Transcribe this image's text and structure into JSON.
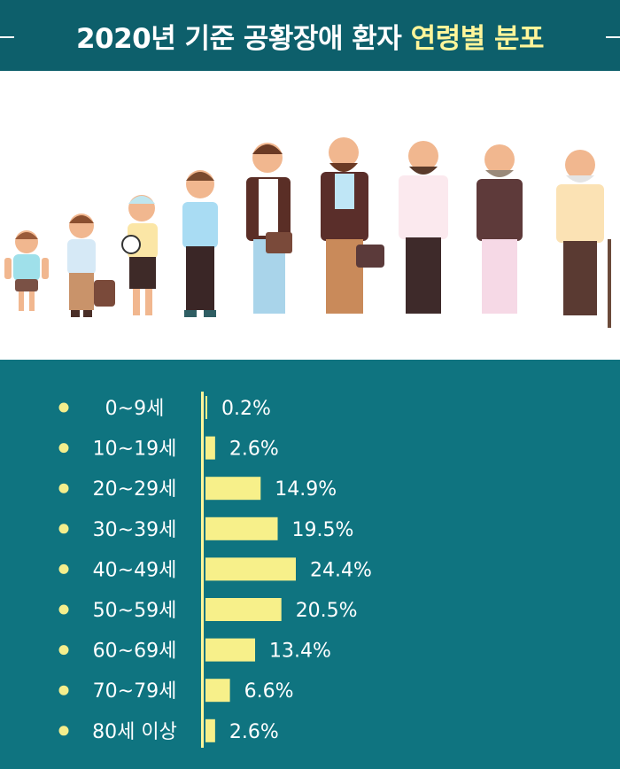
{
  "header": {
    "title_main": "2020년 기준 공황장애 환자",
    "title_highlight": "연령별 분포"
  },
  "colors": {
    "header_bg": "#0d5f6b",
    "chart_bg": "#0f7480",
    "bar": "#f7f08a",
    "axis": "#fff59a",
    "bullet": "#f4ee8c",
    "highlight_text": "#fff59a"
  },
  "chart_data": {
    "type": "bar",
    "orientation": "horizontal",
    "title": "2020년 기준 공황장애 환자 연령별 분포",
    "categories": [
      "0~9세",
      "10~19세",
      "20~29세",
      "30~39세",
      "40~49세",
      "50~59세",
      "60~69세",
      "70~79세",
      "80세 이상"
    ],
    "values": [
      0.2,
      2.6,
      14.9,
      19.5,
      24.4,
      20.5,
      13.4,
      6.6,
      2.6
    ],
    "value_labels": [
      "0.2%",
      "2.6%",
      "14.9%",
      "19.5%",
      "24.4%",
      "20.5%",
      "13.4%",
      "6.6%",
      "2.6%"
    ],
    "unit": "%",
    "xlim": [
      0,
      24.4
    ],
    "grid": false,
    "legend": "none"
  }
}
